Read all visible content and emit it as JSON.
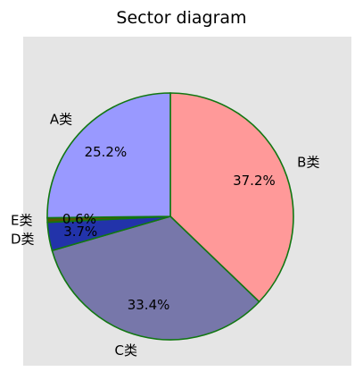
{
  "chart_data": {
    "type": "pie",
    "title": "Sector diagram",
    "categories": [
      "B类",
      "C类",
      "D类",
      "E类",
      "A类"
    ],
    "values": [
      37.2,
      33.4,
      3.7,
      0.6,
      25.2
    ],
    "value_labels": [
      "37.2%",
      "33.4%",
      "3.7%",
      "0.6%",
      "25.2%"
    ],
    "colors": [
      "#ff9999",
      "#7777aa",
      "#2233aa",
      "#555500",
      "#9999ff"
    ],
    "edge_color": "#117711",
    "background": "#e5e5e5",
    "start_direction": "top",
    "direction": "clockwise"
  }
}
